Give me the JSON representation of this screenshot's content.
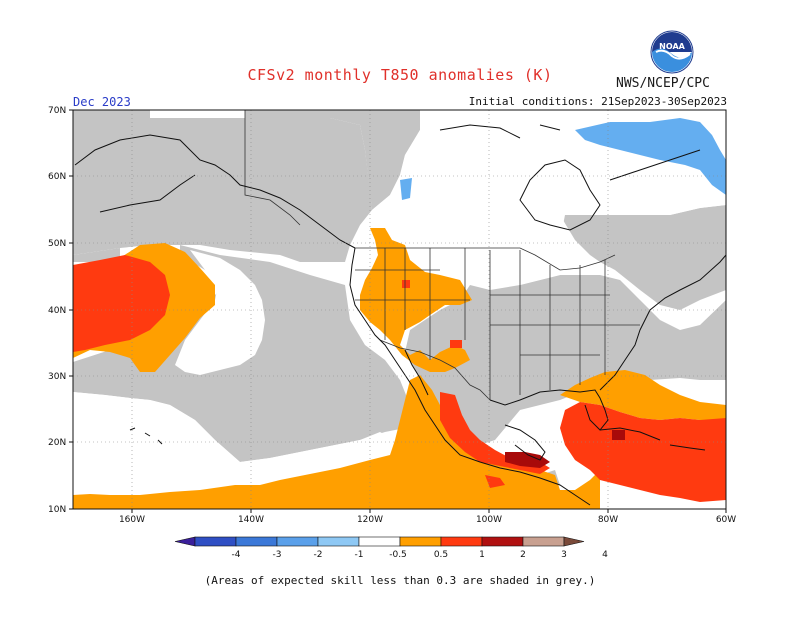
{
  "header": {
    "title": "CFSv2 monthly T850 anomalies (K)",
    "agency": "NWS/NCEP/CPC",
    "month": "Dec 2023",
    "initial_conditions": "Initial conditions: 21Sep2023-30Sep2023",
    "logo_text": "NOAA"
  },
  "axes": {
    "lat_labels": [
      "70N",
      "60N",
      "50N",
      "40N",
      "30N",
      "20N",
      "10N"
    ],
    "lon_labels": [
      "160W",
      "140W",
      "120W",
      "100W",
      "80W",
      "60W"
    ]
  },
  "colorbar": {
    "labels": [
      "-4",
      "-3",
      "-2",
      "-1",
      "-0.5",
      "0.5",
      "1",
      "2",
      "3",
      "4"
    ],
    "colors": [
      "#3a1f9a",
      "#2f4fc4",
      "#3b78d8",
      "#5aa0ea",
      "#8ec8f4",
      "#ffffff",
      "#ff9f00",
      "#ff3a10",
      "#b01010",
      "#c8a090",
      "#7a4a3a"
    ]
  },
  "legend_colors": {
    "grey": "#c4c4c4",
    "orange": "#ff9f00",
    "red": "#ff3a10",
    "darkred": "#a80a0a",
    "lightblue": "#64aef0",
    "ocean_white": "#ffffff"
  },
  "footnote": "(Areas of expected skill less than 0.3 are shaded in grey.)"
}
